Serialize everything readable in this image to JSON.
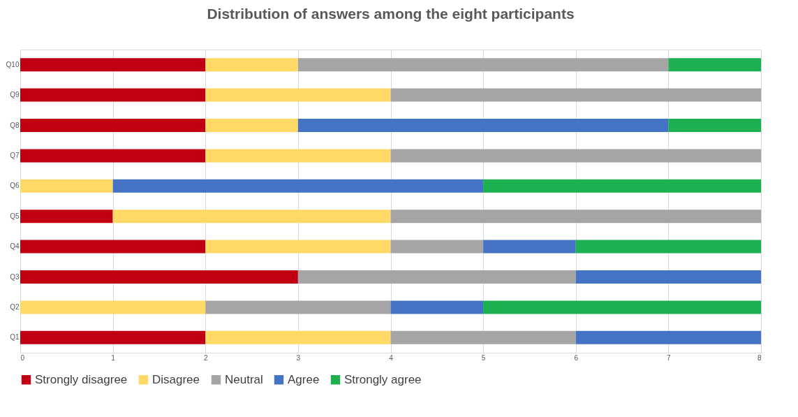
{
  "chart_data": {
    "type": "bar",
    "title": "Distribution of answers among the eight participants",
    "orientation": "horizontal",
    "stacked": true,
    "categories": [
      "Q10",
      "Q9",
      "Q8",
      "Q7",
      "Q6",
      "Q5",
      "Q4",
      "Q3",
      "Q2",
      "Q1"
    ],
    "series": [
      {
        "name": "Strongly disagree",
        "color": "#c00012",
        "values": [
          2,
          2,
          2,
          2,
          0,
          1,
          2,
          3,
          0,
          2
        ]
      },
      {
        "name": "Disagree",
        "color": "#ffd966",
        "values": [
          1,
          2,
          1,
          2,
          1,
          3,
          2,
          0,
          2,
          2
        ]
      },
      {
        "name": "Neutral",
        "color": "#a5a5a5",
        "values": [
          4,
          4,
          0,
          4,
          0,
          4,
          1,
          3,
          2,
          2
        ]
      },
      {
        "name": "Agree",
        "color": "#4472c4",
        "values": [
          0,
          0,
          4,
          0,
          4,
          0,
          1,
          2,
          1,
          2
        ]
      },
      {
        "name": "Strongly agree",
        "color": "#1db050",
        "values": [
          1,
          0,
          1,
          0,
          3,
          0,
          2,
          0,
          3,
          0
        ]
      }
    ],
    "xlim": [
      0,
      8
    ],
    "xticks": [
      0,
      1,
      2,
      3,
      4,
      5,
      6,
      7,
      8
    ],
    "grid": "x",
    "legend": "bottom"
  }
}
